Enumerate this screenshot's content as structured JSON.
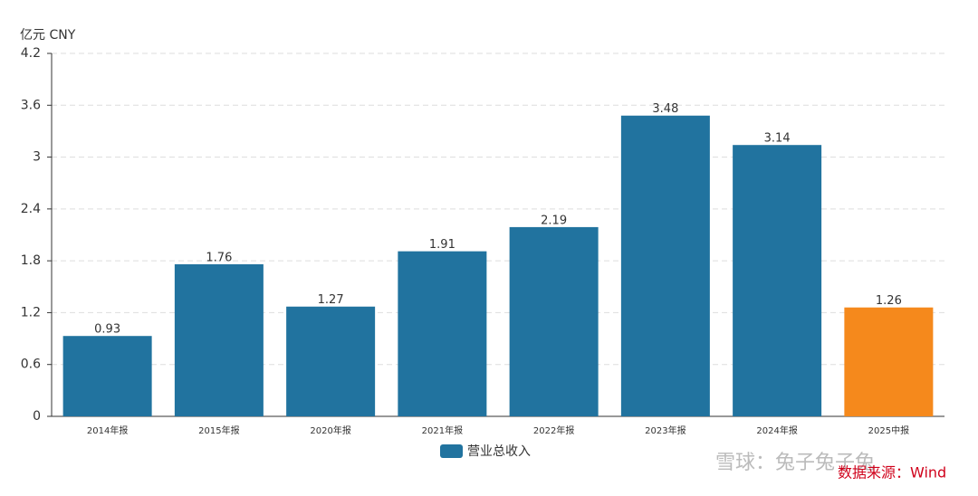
{
  "chart_data": {
    "type": "bar",
    "y_axis_label": "亿元  CNY",
    "categories": [
      "2014年报",
      "2015年报",
      "2020年报",
      "2021年报",
      "2022年报",
      "2023年报",
      "2024年报",
      "2025中报"
    ],
    "series": [
      {
        "name": "营业总收入",
        "color": "#21739f",
        "values": [
          0.93,
          1.76,
          1.27,
          1.91,
          2.19,
          3.48,
          3.14,
          1.26
        ],
        "bar_colors": [
          "#21739f",
          "#21739f",
          "#21739f",
          "#21739f",
          "#21739f",
          "#21739f",
          "#21739f",
          "#f5891c"
        ]
      }
    ],
    "ylim": [
      0,
      4.2
    ],
    "yticks": [
      0,
      0.6,
      1.2,
      1.8,
      2.4,
      3,
      3.6,
      4.2
    ],
    "grid": true,
    "source": "数据来源：Wind",
    "watermark": "雪球：兔子兔子兔"
  }
}
